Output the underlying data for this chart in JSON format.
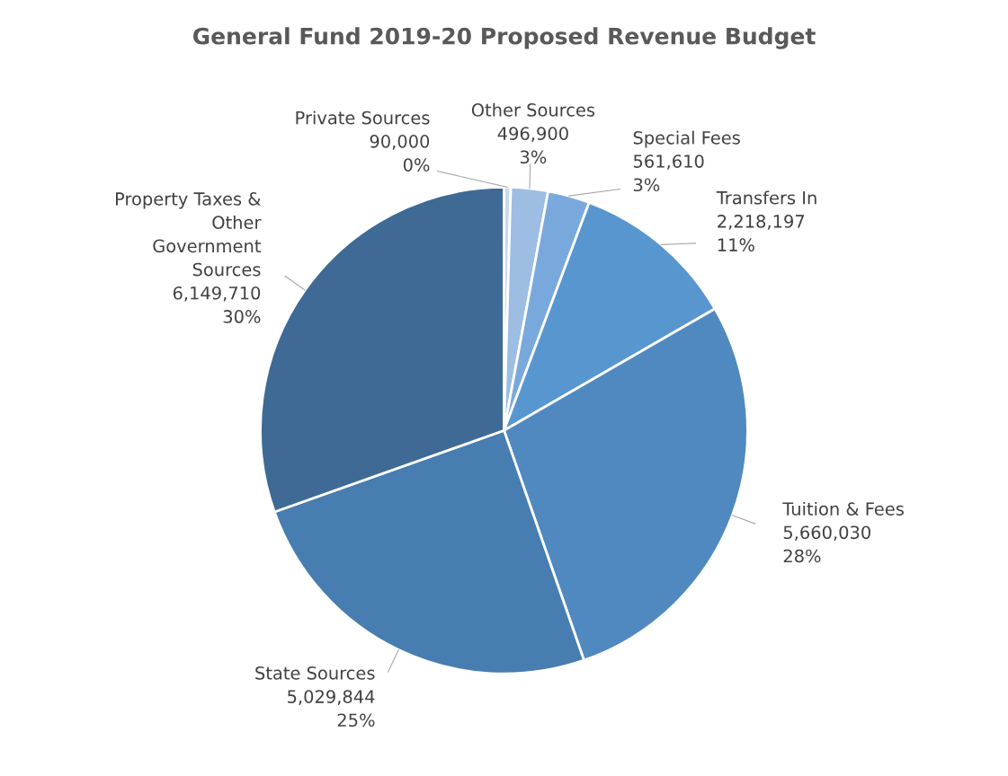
{
  "chart_data": {
    "type": "pie",
    "title": "General Fund 2019-20 Proposed Revenue Budget",
    "categories": [
      "Private Sources",
      "Other Sources",
      "Special Fees",
      "Transfers In",
      "Tuition & Fees",
      "State Sources",
      "Property Taxes &\nOther\nGovernment\nSources"
    ],
    "values": [
      90000,
      496900,
      561610,
      2218197,
      5660030,
      5029844,
      6149710
    ],
    "value_labels": [
      "90,000\n0%",
      "496,900\n3%",
      "561,610\n3%",
      "2,218,197\n11%",
      "5,660,030\n28%",
      "5,029,844\n25%",
      "6,149,710\n30%"
    ],
    "colors": [
      "#c9d8ee",
      "#9dbde3",
      "#79a9dc",
      "#5896cf",
      "#4f89c0",
      "#477db0",
      "#3e6a95"
    ],
    "legend": false
  }
}
